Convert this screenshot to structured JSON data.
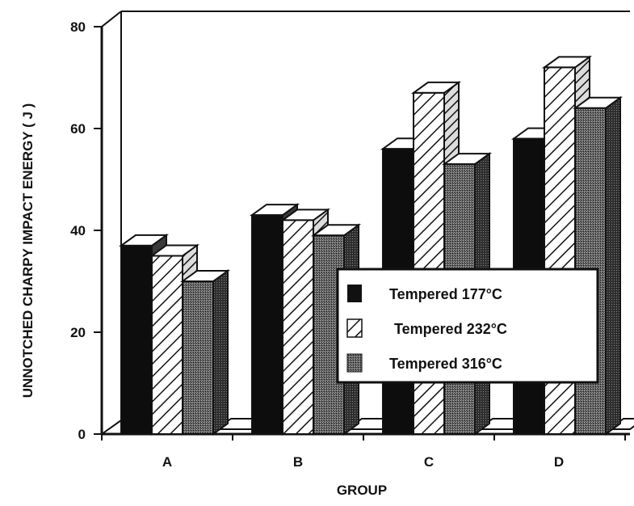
{
  "chart_data": {
    "type": "bar",
    "style": "3d",
    "title": "",
    "xlabel": "GROUP",
    "ylabel": "UNNOTCHED CHARPY IMPACT ENERGY ( J )",
    "categories": [
      "A",
      "B",
      "C",
      "D"
    ],
    "ylim": [
      0,
      80
    ],
    "yticks": [
      "0",
      "20",
      "40",
      "60",
      "80"
    ],
    "series": [
      {
        "name": "Tempered 177°C",
        "fill": "solid-black",
        "values": [
          37,
          43,
          56,
          58
        ]
      },
      {
        "name": "Tempered 232°C",
        "fill": "diagonal-hatch",
        "values": [
          35,
          42,
          67,
          72
        ]
      },
      {
        "name": "Tempered 316°C",
        "fill": "dark-stipple",
        "values": [
          30,
          39,
          53,
          64
        ]
      }
    ],
    "legend_position": "lower-right",
    "grid": false
  }
}
